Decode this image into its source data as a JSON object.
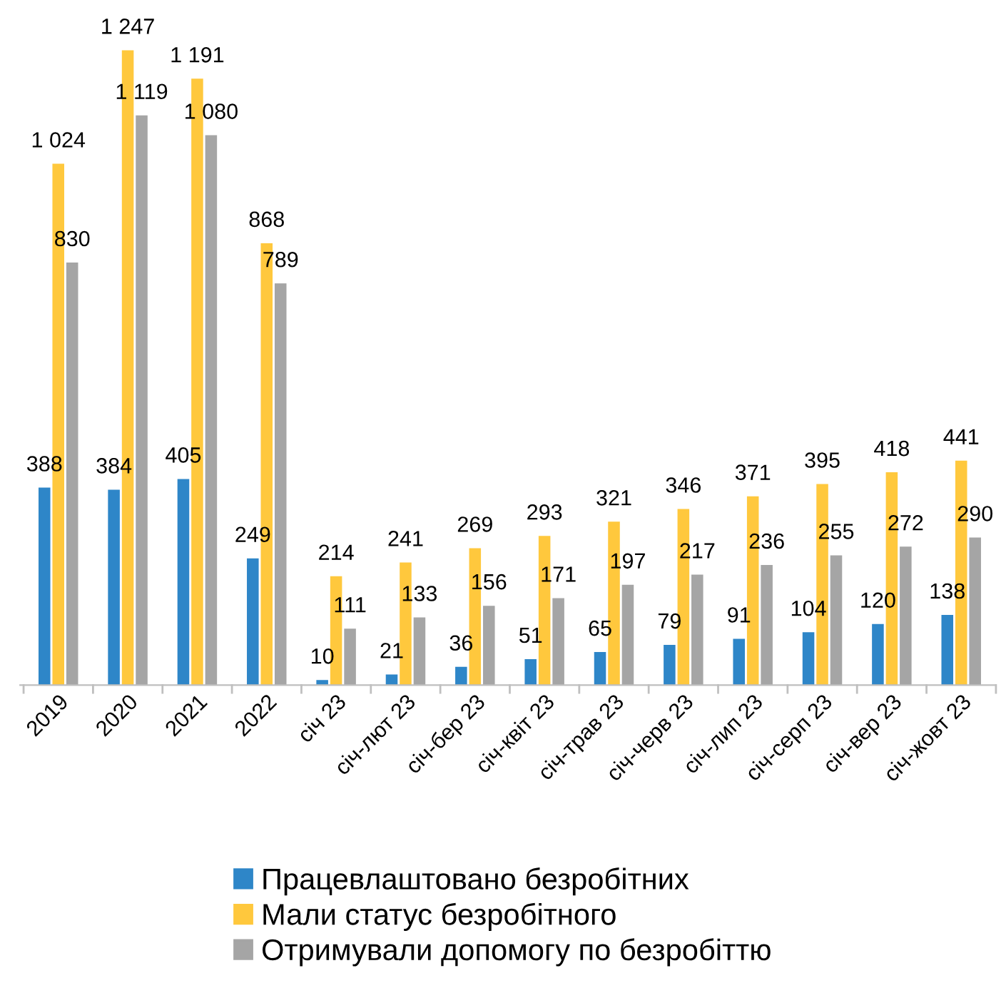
{
  "chart_data": {
    "type": "bar",
    "categories": [
      "2019",
      "2020",
      "2021",
      "2022",
      "січ 23",
      "січ-лют 23",
      "січ-бер 23",
      "січ-квіт 23",
      "січ-трав 23",
      "січ-черв 23",
      "січ-лип 23",
      "січ-серп 23",
      "січ-вер 23",
      "січ-жовт 23"
    ],
    "series": [
      {
        "name": "Працевлаштовано безробітних",
        "color": "#2e86c8",
        "values": [
          388,
          384,
          405,
          249,
          10,
          21,
          36,
          51,
          65,
          79,
          91,
          104,
          120,
          138
        ],
        "value_labels": [
          "388",
          "384",
          "405",
          "249",
          "10",
          "21",
          "36",
          "51",
          "65",
          "79",
          "91",
          "104",
          "120",
          "138"
        ]
      },
      {
        "name": "Мали статус безробітного",
        "color": "#ffc83d",
        "values": [
          1024,
          1247,
          1191,
          868,
          214,
          241,
          269,
          293,
          321,
          346,
          371,
          395,
          418,
          441
        ],
        "value_labels": [
          "1 024",
          "1 247",
          "1 191",
          "868",
          "214",
          "241",
          "269",
          "293",
          "321",
          "346",
          "371",
          "395",
          "418",
          "441"
        ]
      },
      {
        "name": "Отримували допомогу по безробіттю",
        "color": "#a5a5a5",
        "values": [
          830,
          1119,
          1080,
          789,
          111,
          133,
          156,
          171,
          197,
          217,
          236,
          255,
          272,
          290
        ],
        "value_labels": [
          "830",
          "1 119",
          "1 080",
          "789",
          "111",
          "133",
          "156",
          "171",
          "197",
          "217",
          "236",
          "255",
          "272",
          "290"
        ]
      }
    ],
    "legend": "bottom",
    "grid": false
  }
}
